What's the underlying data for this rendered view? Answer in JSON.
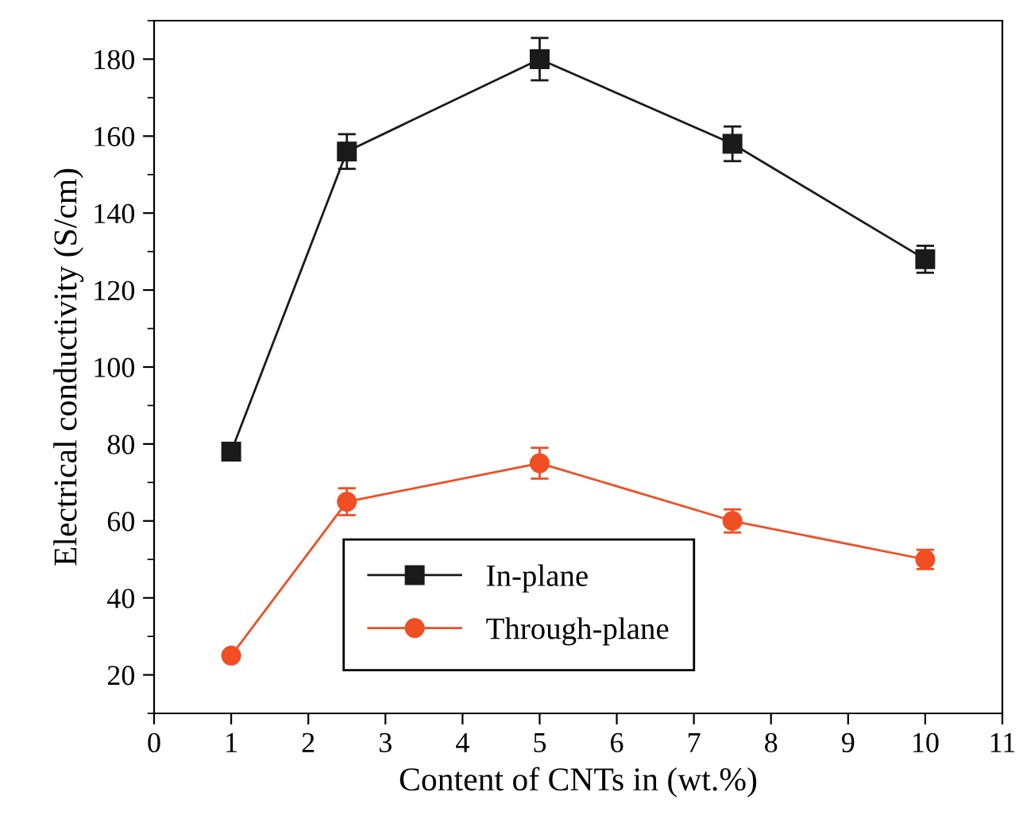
{
  "chart_data": {
    "type": "line",
    "xlabel": "Content of CNTs in (wt.%)",
    "ylabel": "Electrical conductivity (S/cm)",
    "x": [
      1,
      2.5,
      5,
      7.5,
      10
    ],
    "series": [
      {
        "name": "In-plane",
        "color": "#1a1a1a",
        "marker": "square",
        "values": [
          78,
          156,
          180,
          158,
          128
        ],
        "errors": [
          2,
          4.5,
          5.5,
          4.5,
          3.5
        ]
      },
      {
        "name": "Through-plane",
        "color": "#f04e23",
        "marker": "circle",
        "values": [
          25,
          65,
          75,
          60,
          50
        ],
        "errors": [
          null,
          3.5,
          4,
          3,
          2.5
        ]
      }
    ],
    "xlim": [
      0,
      11
    ],
    "xticks": [
      0,
      1,
      2,
      3,
      4,
      5,
      6,
      7,
      8,
      9,
      10,
      11
    ],
    "ylim": [
      10,
      190
    ],
    "yticks": [
      20,
      40,
      60,
      80,
      100,
      120,
      140,
      160,
      180
    ],
    "grid": false,
    "legend": "bottom",
    "line_style": "solid"
  }
}
